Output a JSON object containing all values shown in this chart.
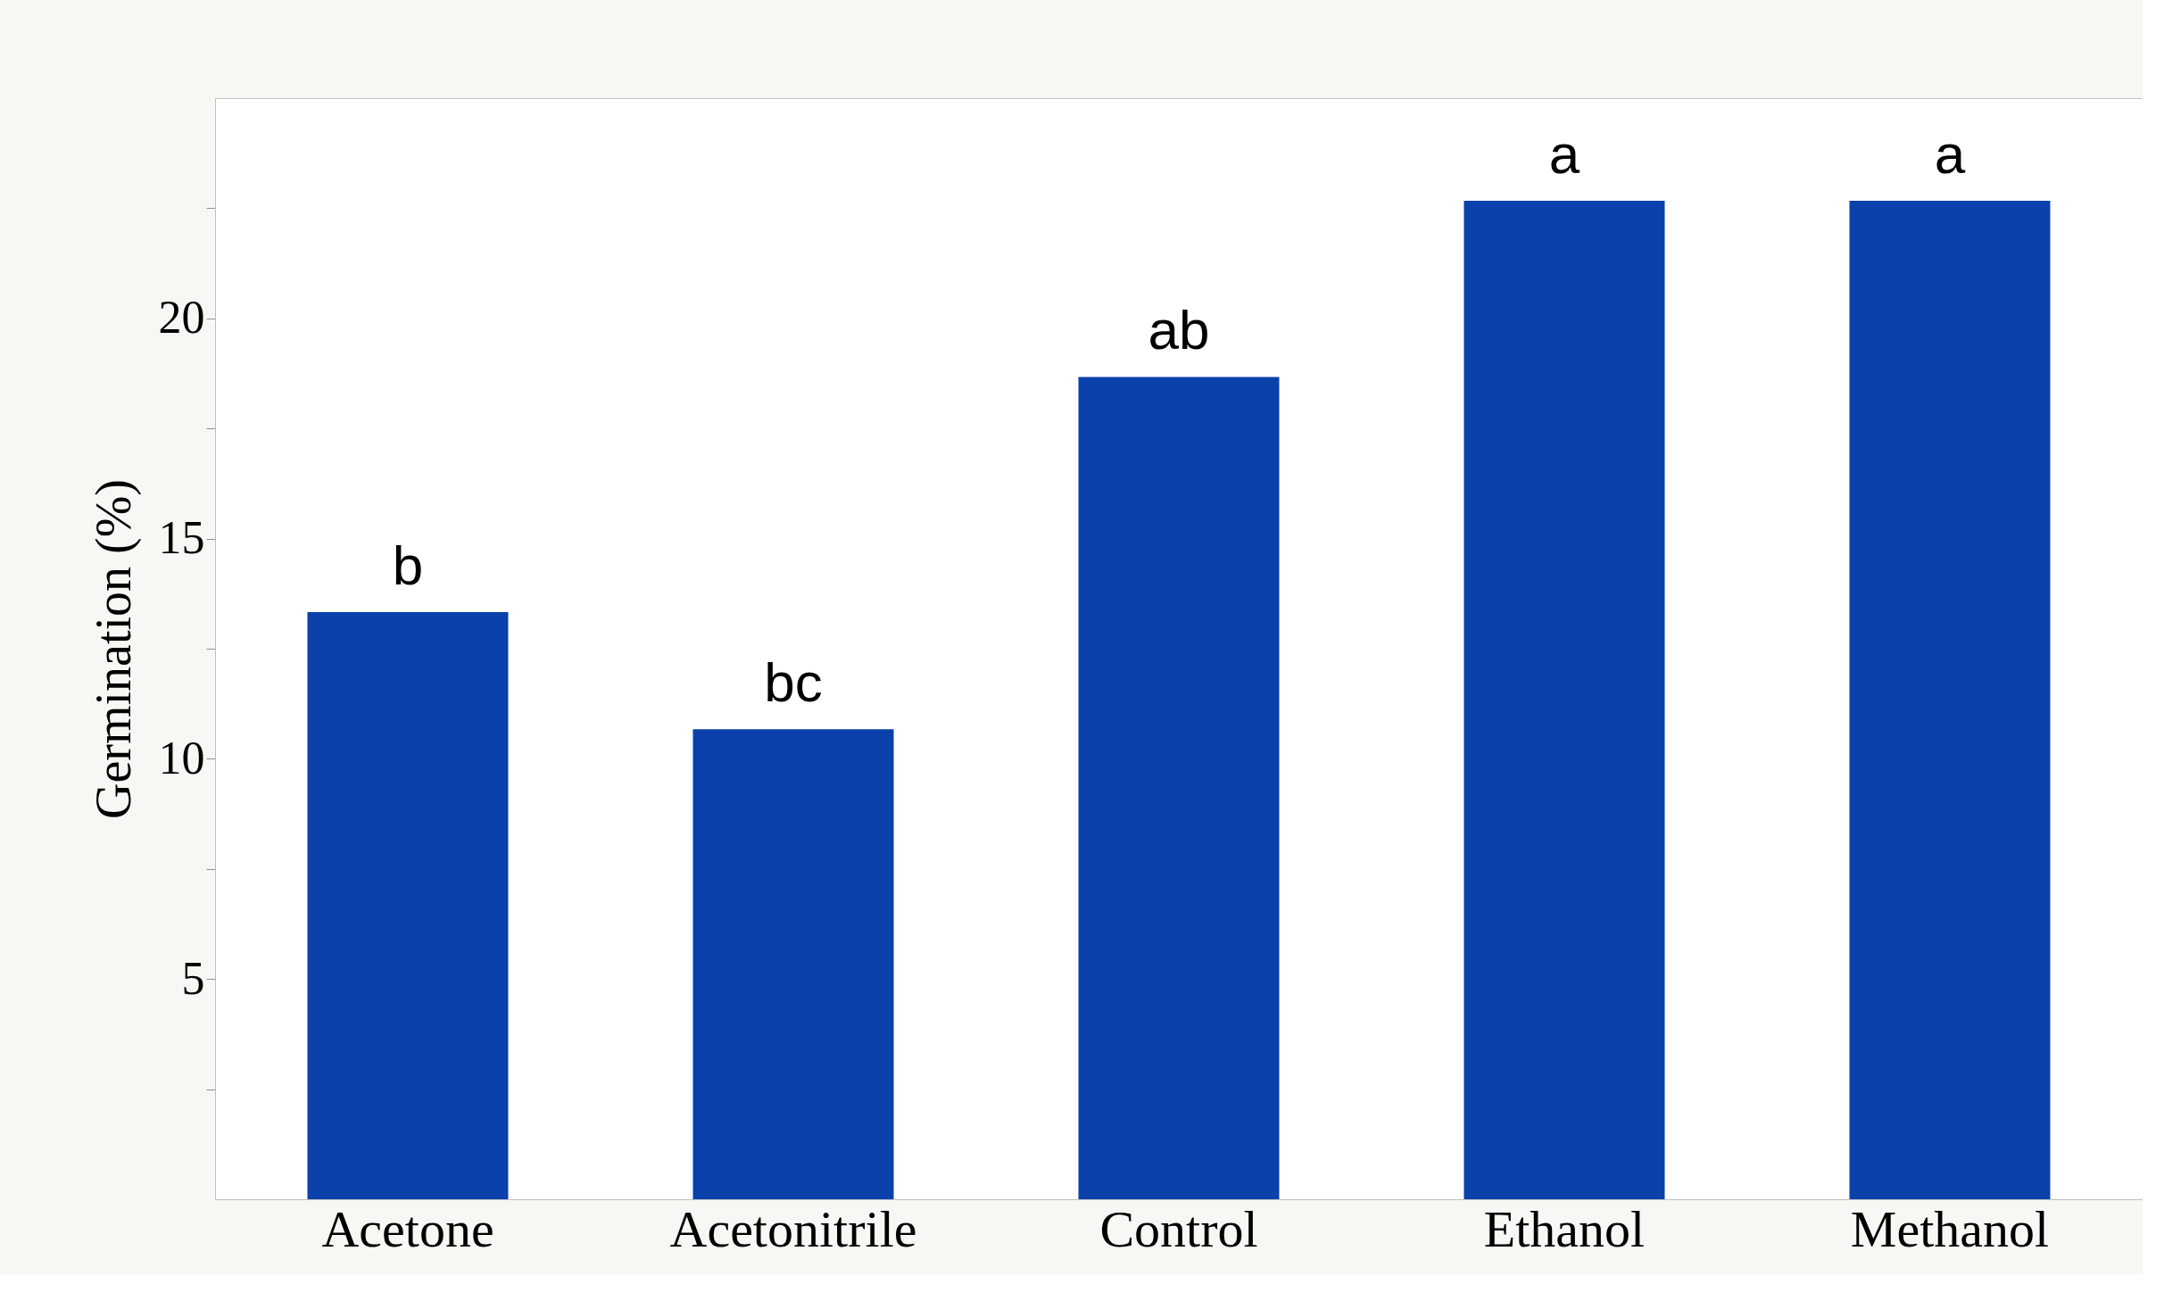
{
  "chart_data": {
    "type": "bar",
    "ylabel": "Germination (%)",
    "categories": [
      "Acetone",
      "Acetonitrile",
      "Control",
      "Ethanol",
      "Methanol"
    ],
    "values": [
      13.33,
      10.67,
      18.67,
      22.67,
      22.67
    ],
    "color": "#0a41ab",
    "ylim": [
      0,
      25
    ],
    "yticks": [
      {
        "value": 2.5,
        "label": null
      },
      5,
      {
        "value": 7.5,
        "label": null
      },
      10,
      {
        "value": 12.5,
        "label": null
      },
      15,
      {
        "value": 17.5,
        "label": null
      },
      20,
      {
        "value": 22.5,
        "label": null
      }
    ],
    "grid": false,
    "annotations": [
      {
        "text": "b",
        "x": "Acetone",
        "y": 13.33
      },
      {
        "text": "bc",
        "x": "Acetonitrile",
        "y": 10.67
      },
      {
        "text": "ab",
        "x": "Control",
        "y": 18.67
      },
      {
        "text": "a",
        "x": "Ethanol",
        "y": 22.67
      },
      {
        "text": "a",
        "x": "Methanol",
        "y": 22.67
      }
    ]
  }
}
